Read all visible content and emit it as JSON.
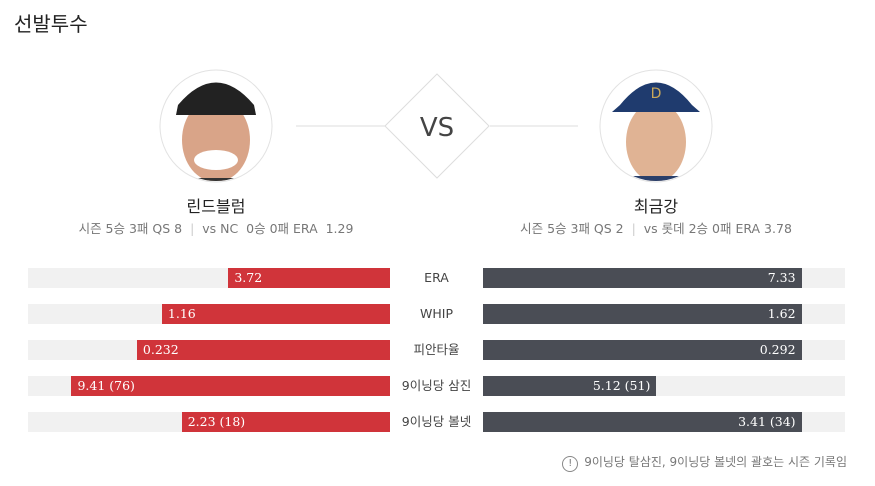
{
  "header": {
    "title": "선발투수"
  },
  "center": "VS",
  "players": [
    {
      "name": "린드블럼",
      "season": "시즌 5승 3패 QS 8",
      "versus": "vs NC  0승 0패 ERA  1.29"
    },
    {
      "name": "최금강",
      "season": "시즌 5승 3패 QS 2",
      "versus": "vs 롯데 2승 0패 ERA 3.78"
    }
  ],
  "stats": [
    {
      "label": "ERA",
      "left": 3.72,
      "right": 7.33
    },
    {
      "label": "WHIP",
      "left": 1.16,
      "right": 1.62
    },
    {
      "label": "피안타율",
      "left": 0.232,
      "right": 0.292
    },
    {
      "label": "9이닝당 삼진",
      "left": {
        "value": 9.41,
        "label": "9.41 (76)"
      },
      "right": {
        "value": 5.12,
        "label": "5.12 (51)"
      }
    },
    {
      "label": "9이닝당 볼넷",
      "left": {
        "value": 2.23,
        "label": "2.23 (18)"
      },
      "right": {
        "value": 3.41,
        "label": "3.41 (34)"
      }
    }
  ],
  "footnote": "9이닝당 탈삼진, 9이닝당 볼넷의 괄호는 시즌 기록임"
}
